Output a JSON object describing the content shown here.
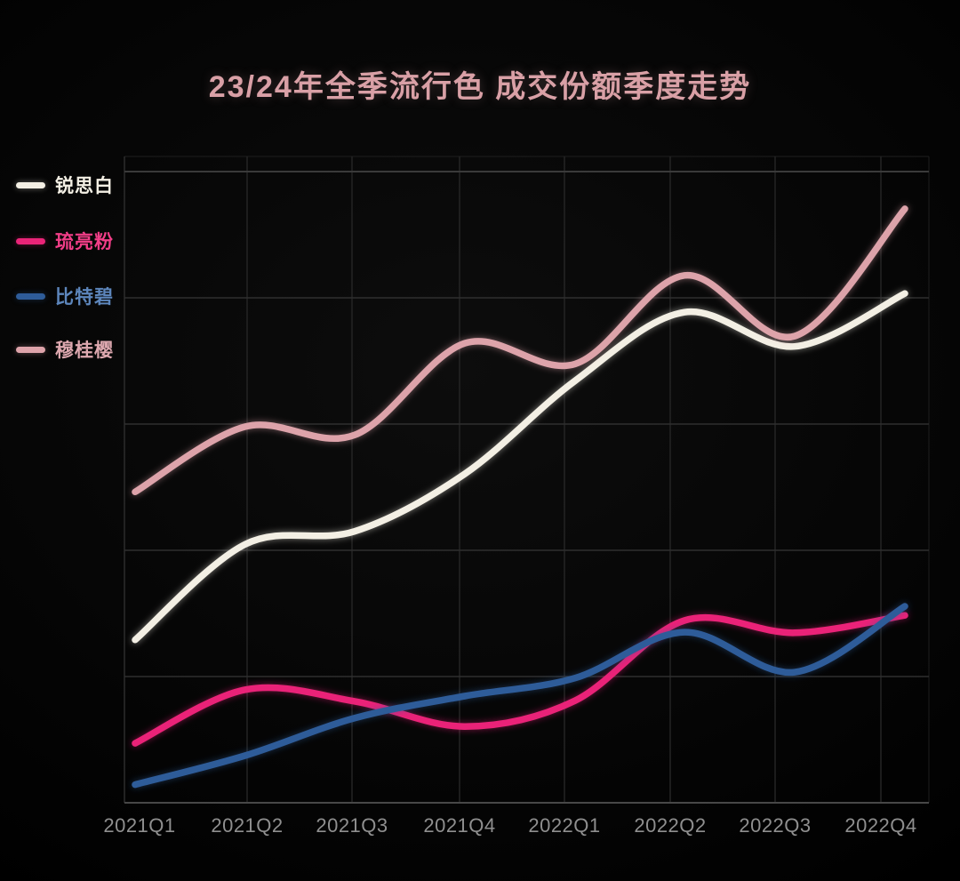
{
  "title": "23/24年全季流行色 成交份额季度走势",
  "legend": {
    "position": "top-left",
    "items": [
      {
        "label": "锐思白",
        "color": "#f3efe4",
        "text_color": "#f3efe4"
      },
      {
        "label": "琉亮粉",
        "color": "#ea2478",
        "text_color": "#f23e88"
      },
      {
        "label": "比特碧",
        "color": "#2e5c99",
        "text_color": "#5d86bc"
      },
      {
        "label": "穆桂樱",
        "color": "#dda3aa",
        "text_color": "#dda8af"
      }
    ]
  },
  "colors": {
    "background": "#060606",
    "title": "#d9a0a6",
    "tick_label": "#8f8f8f",
    "grid_horizontal": "#2f2f2f",
    "grid_horizontal_top": "#3a3a3a",
    "grid_vertical": "#242424",
    "axis_bottom": "#474747",
    "axis_left": "#2c2c2c",
    "plot_border_faint": "#1e1e1e"
  },
  "chart_data": {
    "type": "line",
    "title": "23/24年全季流行色 成交份额季度走势",
    "categories": [
      "2021Q1",
      "2021Q2",
      "2021Q3",
      "2021Q4",
      "2022Q1",
      "2022Q2",
      "2022Q3",
      "2022Q4"
    ],
    "series": [
      {
        "name": "锐思白",
        "color": "#f3efe4",
        "values": [
          25.2,
          40.0,
          42.0,
          50.9,
          65.3,
          75.9,
          70.6,
          78.8
        ]
      },
      {
        "name": "琉亮粉",
        "color": "#ea2478",
        "values": [
          9.2,
          17.5,
          15.7,
          11.8,
          15.8,
          28.2,
          26.3,
          29.0
        ]
      },
      {
        "name": "比特碧",
        "color": "#2e5c99",
        "values": [
          2.8,
          7.3,
          13.1,
          16.5,
          19.3,
          26.4,
          20.2,
          30.4
        ]
      },
      {
        "name": "穆桂樱",
        "color": "#dda3aa",
        "values": [
          48.1,
          58.2,
          56.9,
          71.1,
          67.9,
          81.6,
          72.2,
          91.9
        ]
      }
    ],
    "xlabel": "",
    "ylabel": "",
    "ylim": [
      0,
      100
    ],
    "y_axis_labels_shown": false,
    "value_note": "no y-axis tick labels visible; values estimated as % of plot height (bottom axis = 0, plot top = 100)",
    "grid": true,
    "smooth": true,
    "legend_position": "left",
    "background": "#060606"
  }
}
